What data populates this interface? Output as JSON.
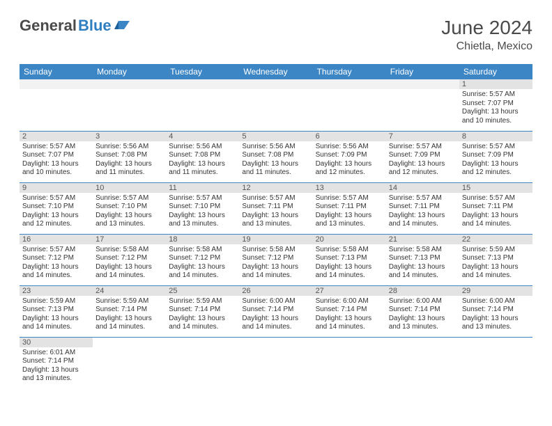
{
  "logo": {
    "text1": "General",
    "text2": "Blue",
    "color1": "#4a4a4a",
    "color2": "#2f7ec0"
  },
  "title": "June 2024",
  "location": "Chietla, Mexico",
  "colors": {
    "header_bg": "#3d86c6",
    "header_text": "#ffffff",
    "daynum_bg": "#e3e3e3",
    "border": "#3d86c6",
    "text": "#333333"
  },
  "weekdays": [
    "Sunday",
    "Monday",
    "Tuesday",
    "Wednesday",
    "Thursday",
    "Friday",
    "Saturday"
  ],
  "weeks": [
    [
      null,
      null,
      null,
      null,
      null,
      null,
      {
        "n": "1",
        "sunrise": "Sunrise: 5:57 AM",
        "sunset": "Sunset: 7:07 PM",
        "day1": "Daylight: 13 hours",
        "day2": "and 10 minutes."
      }
    ],
    [
      {
        "n": "2",
        "sunrise": "Sunrise: 5:57 AM",
        "sunset": "Sunset: 7:07 PM",
        "day1": "Daylight: 13 hours",
        "day2": "and 10 minutes."
      },
      {
        "n": "3",
        "sunrise": "Sunrise: 5:56 AM",
        "sunset": "Sunset: 7:08 PM",
        "day1": "Daylight: 13 hours",
        "day2": "and 11 minutes."
      },
      {
        "n": "4",
        "sunrise": "Sunrise: 5:56 AM",
        "sunset": "Sunset: 7:08 PM",
        "day1": "Daylight: 13 hours",
        "day2": "and 11 minutes."
      },
      {
        "n": "5",
        "sunrise": "Sunrise: 5:56 AM",
        "sunset": "Sunset: 7:08 PM",
        "day1": "Daylight: 13 hours",
        "day2": "and 11 minutes."
      },
      {
        "n": "6",
        "sunrise": "Sunrise: 5:56 AM",
        "sunset": "Sunset: 7:09 PM",
        "day1": "Daylight: 13 hours",
        "day2": "and 12 minutes."
      },
      {
        "n": "7",
        "sunrise": "Sunrise: 5:57 AM",
        "sunset": "Sunset: 7:09 PM",
        "day1": "Daylight: 13 hours",
        "day2": "and 12 minutes."
      },
      {
        "n": "8",
        "sunrise": "Sunrise: 5:57 AM",
        "sunset": "Sunset: 7:09 PM",
        "day1": "Daylight: 13 hours",
        "day2": "and 12 minutes."
      }
    ],
    [
      {
        "n": "9",
        "sunrise": "Sunrise: 5:57 AM",
        "sunset": "Sunset: 7:10 PM",
        "day1": "Daylight: 13 hours",
        "day2": "and 12 minutes."
      },
      {
        "n": "10",
        "sunrise": "Sunrise: 5:57 AM",
        "sunset": "Sunset: 7:10 PM",
        "day1": "Daylight: 13 hours",
        "day2": "and 13 minutes."
      },
      {
        "n": "11",
        "sunrise": "Sunrise: 5:57 AM",
        "sunset": "Sunset: 7:10 PM",
        "day1": "Daylight: 13 hours",
        "day2": "and 13 minutes."
      },
      {
        "n": "12",
        "sunrise": "Sunrise: 5:57 AM",
        "sunset": "Sunset: 7:11 PM",
        "day1": "Daylight: 13 hours",
        "day2": "and 13 minutes."
      },
      {
        "n": "13",
        "sunrise": "Sunrise: 5:57 AM",
        "sunset": "Sunset: 7:11 PM",
        "day1": "Daylight: 13 hours",
        "day2": "and 13 minutes."
      },
      {
        "n": "14",
        "sunrise": "Sunrise: 5:57 AM",
        "sunset": "Sunset: 7:11 PM",
        "day1": "Daylight: 13 hours",
        "day2": "and 14 minutes."
      },
      {
        "n": "15",
        "sunrise": "Sunrise: 5:57 AM",
        "sunset": "Sunset: 7:11 PM",
        "day1": "Daylight: 13 hours",
        "day2": "and 14 minutes."
      }
    ],
    [
      {
        "n": "16",
        "sunrise": "Sunrise: 5:57 AM",
        "sunset": "Sunset: 7:12 PM",
        "day1": "Daylight: 13 hours",
        "day2": "and 14 minutes."
      },
      {
        "n": "17",
        "sunrise": "Sunrise: 5:58 AM",
        "sunset": "Sunset: 7:12 PM",
        "day1": "Daylight: 13 hours",
        "day2": "and 14 minutes."
      },
      {
        "n": "18",
        "sunrise": "Sunrise: 5:58 AM",
        "sunset": "Sunset: 7:12 PM",
        "day1": "Daylight: 13 hours",
        "day2": "and 14 minutes."
      },
      {
        "n": "19",
        "sunrise": "Sunrise: 5:58 AM",
        "sunset": "Sunset: 7:12 PM",
        "day1": "Daylight: 13 hours",
        "day2": "and 14 minutes."
      },
      {
        "n": "20",
        "sunrise": "Sunrise: 5:58 AM",
        "sunset": "Sunset: 7:13 PM",
        "day1": "Daylight: 13 hours",
        "day2": "and 14 minutes."
      },
      {
        "n": "21",
        "sunrise": "Sunrise: 5:58 AM",
        "sunset": "Sunset: 7:13 PM",
        "day1": "Daylight: 13 hours",
        "day2": "and 14 minutes."
      },
      {
        "n": "22",
        "sunrise": "Sunrise: 5:59 AM",
        "sunset": "Sunset: 7:13 PM",
        "day1": "Daylight: 13 hours",
        "day2": "and 14 minutes."
      }
    ],
    [
      {
        "n": "23",
        "sunrise": "Sunrise: 5:59 AM",
        "sunset": "Sunset: 7:13 PM",
        "day1": "Daylight: 13 hours",
        "day2": "and 14 minutes."
      },
      {
        "n": "24",
        "sunrise": "Sunrise: 5:59 AM",
        "sunset": "Sunset: 7:14 PM",
        "day1": "Daylight: 13 hours",
        "day2": "and 14 minutes."
      },
      {
        "n": "25",
        "sunrise": "Sunrise: 5:59 AM",
        "sunset": "Sunset: 7:14 PM",
        "day1": "Daylight: 13 hours",
        "day2": "and 14 minutes."
      },
      {
        "n": "26",
        "sunrise": "Sunrise: 6:00 AM",
        "sunset": "Sunset: 7:14 PM",
        "day1": "Daylight: 13 hours",
        "day2": "and 14 minutes."
      },
      {
        "n": "27",
        "sunrise": "Sunrise: 6:00 AM",
        "sunset": "Sunset: 7:14 PM",
        "day1": "Daylight: 13 hours",
        "day2": "and 14 minutes."
      },
      {
        "n": "28",
        "sunrise": "Sunrise: 6:00 AM",
        "sunset": "Sunset: 7:14 PM",
        "day1": "Daylight: 13 hours",
        "day2": "and 13 minutes."
      },
      {
        "n": "29",
        "sunrise": "Sunrise: 6:00 AM",
        "sunset": "Sunset: 7:14 PM",
        "day1": "Daylight: 13 hours",
        "day2": "and 13 minutes."
      }
    ],
    [
      {
        "n": "30",
        "sunrise": "Sunrise: 6:01 AM",
        "sunset": "Sunset: 7:14 PM",
        "day1": "Daylight: 13 hours",
        "day2": "and 13 minutes."
      },
      null,
      null,
      null,
      null,
      null,
      null
    ]
  ]
}
